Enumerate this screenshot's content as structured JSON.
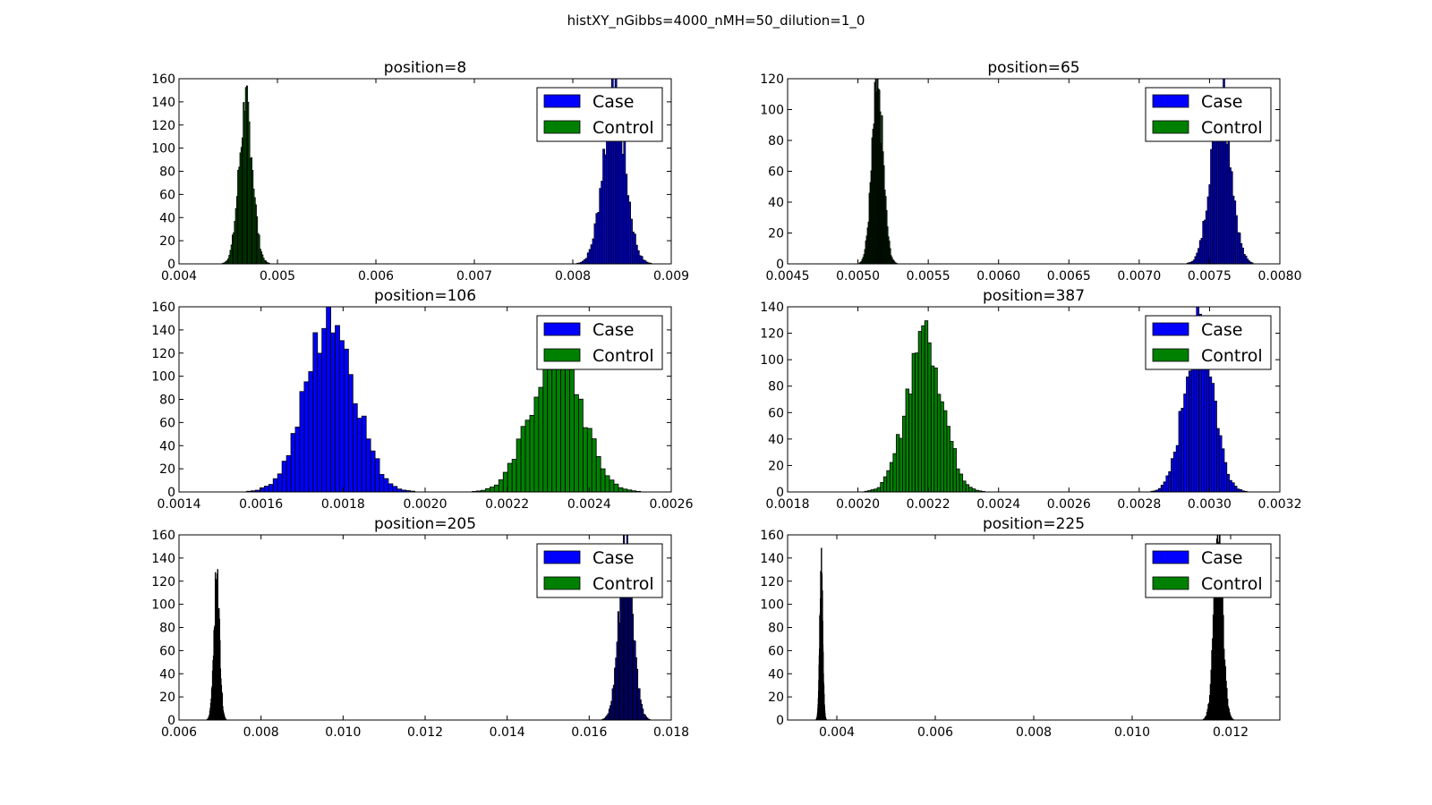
{
  "figure": {
    "title": "histXY_nGibbs=4000_nMH=50_dilution=1_0"
  },
  "legend_labels": [
    "Case",
    "Control"
  ],
  "colors": {
    "case": "#0000ff",
    "control": "#008000",
    "edge": "#000000"
  },
  "chart_data": [
    {
      "type": "bar",
      "title": "position=8",
      "xlim": [
        0.004,
        0.009
      ],
      "ylim": [
        0,
        160
      ],
      "xticks": [
        "0.004",
        "0.005",
        "0.006",
        "0.007",
        "0.008",
        "0.009"
      ],
      "yticks": [
        "0",
        "20",
        "40",
        "60",
        "80",
        "100",
        "120",
        "140",
        "160"
      ],
      "legend": "top-right",
      "series": [
        {
          "name": "Case",
          "mean": 0.00842,
          "sd": 0.00011,
          "peak": 148,
          "bins": 45
        },
        {
          "name": "Control",
          "mean": 0.00468,
          "sd": 7e-05,
          "peak": 135,
          "bins": 45
        }
      ]
    },
    {
      "type": "bar",
      "title": "position=65",
      "xlim": [
        0.0045,
        0.008
      ],
      "ylim": [
        0,
        120
      ],
      "xticks": [
        "0.0045",
        "0.0050",
        "0.0055",
        "0.0060",
        "0.0065",
        "0.0070",
        "0.0075",
        "0.0080"
      ],
      "yticks": [
        "0",
        "20",
        "40",
        "60",
        "80",
        "100",
        "120"
      ],
      "legend": "top-right",
      "series": [
        {
          "name": "Case",
          "mean": 0.00758,
          "sd": 7e-05,
          "peak": 116,
          "bins": 45
        },
        {
          "name": "Control",
          "mean": 0.00514,
          "sd": 4e-05,
          "peak": 113,
          "bins": 45
        }
      ]
    },
    {
      "type": "bar",
      "title": "position=106",
      "xlim": [
        0.0014,
        0.0026
      ],
      "ylim": [
        0,
        160
      ],
      "xticks": [
        "0.0014",
        "0.0016",
        "0.0018",
        "0.0020",
        "0.0022",
        "0.0024",
        "0.0026"
      ],
      "yticks": [
        "0",
        "20",
        "40",
        "60",
        "80",
        "100",
        "120",
        "140",
        "160"
      ],
      "legend": "top-right",
      "series": [
        {
          "name": "Case",
          "mean": 0.00177,
          "sd": 6e-05,
          "peak": 150,
          "bins": 40
        },
        {
          "name": "Control",
          "mean": 0.00232,
          "sd": 6e-05,
          "peak": 127,
          "bins": 40
        }
      ]
    },
    {
      "type": "bar",
      "title": "position=387",
      "xlim": [
        0.0018,
        0.0032
      ],
      "ylim": [
        0,
        140
      ],
      "xticks": [
        "0.0018",
        "0.0020",
        "0.0022",
        "0.0024",
        "0.0026",
        "0.0028",
        "0.0030",
        "0.0032"
      ],
      "yticks": [
        "0",
        "20",
        "40",
        "60",
        "80",
        "100",
        "120",
        "140"
      ],
      "legend": "top-right",
      "series": [
        {
          "name": "Case",
          "mean": 0.00297,
          "sd": 4e-05,
          "peak": 133,
          "bins": 40
        },
        {
          "name": "Control",
          "mean": 0.00219,
          "sd": 5e-05,
          "peak": 122,
          "bins": 40
        }
      ]
    },
    {
      "type": "bar",
      "title": "position=205",
      "xlim": [
        0.006,
        0.018
      ],
      "ylim": [
        0,
        160
      ],
      "xticks": [
        "0.006",
        "0.008",
        "0.010",
        "0.012",
        "0.014",
        "0.016",
        "0.018"
      ],
      "yticks": [
        "0",
        "20",
        "40",
        "60",
        "80",
        "100",
        "120",
        "140",
        "160"
      ],
      "legend": "top-right",
      "series": [
        {
          "name": "Case",
          "mean": 0.0169,
          "sd": 0.00017,
          "peak": 155,
          "bins": 45
        },
        {
          "name": "Control",
          "mean": 0.00692,
          "sd": 7e-05,
          "peak": 122,
          "bins": 45
        }
      ]
    },
    {
      "type": "bar",
      "title": "position=225",
      "xlim": [
        0.003,
        0.013
      ],
      "ylim": [
        0,
        160
      ],
      "xticks": [
        "0.004",
        "0.006",
        "0.008",
        "0.010",
        "0.012"
      ],
      "yticks": [
        "0",
        "20",
        "40",
        "60",
        "80",
        "100",
        "120",
        "140",
        "160"
      ],
      "legend": "top-right",
      "series": [
        {
          "name": "Case",
          "mean": 0.01175,
          "sd": 9e-05,
          "peak": 155,
          "bins": 45
        },
        {
          "name": "Control",
          "mean": 0.00368,
          "sd": 3e-05,
          "peak": 134,
          "bins": 45
        }
      ]
    }
  ]
}
